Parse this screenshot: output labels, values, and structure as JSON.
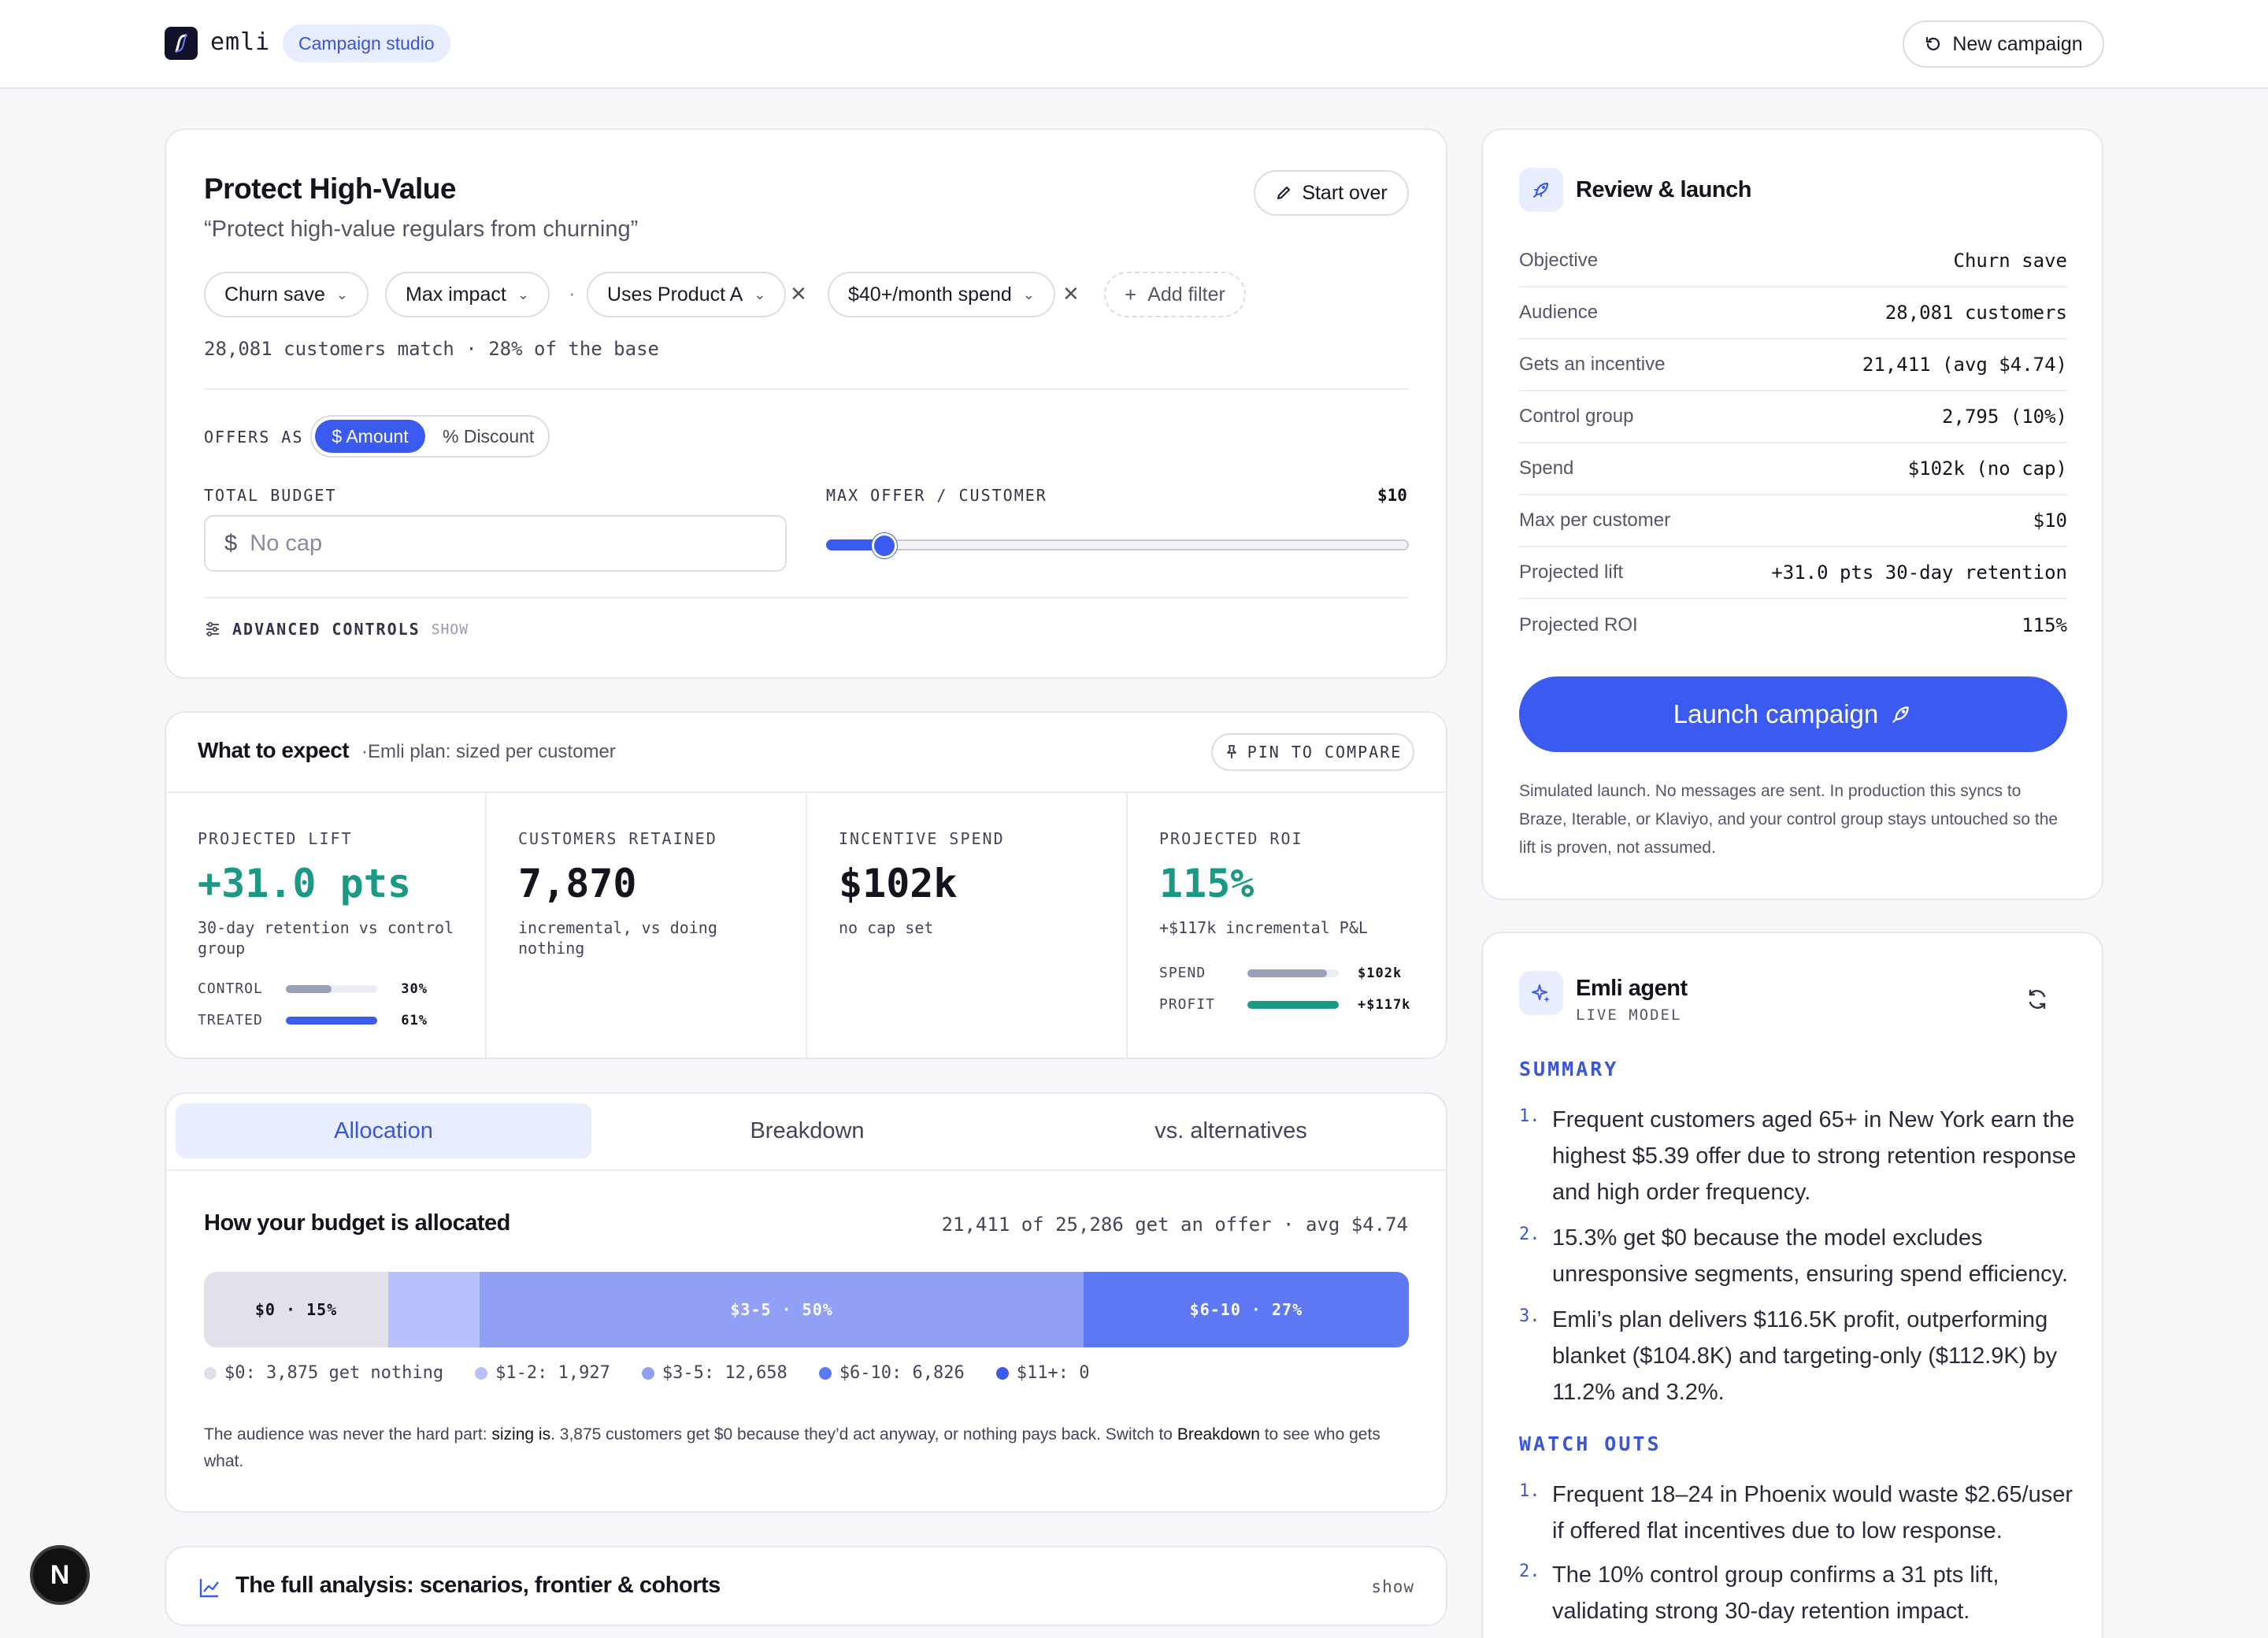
{
  "header": {
    "brand": "emli",
    "studio_label": "Campaign studio",
    "new_campaign_label": "New campaign"
  },
  "campaign": {
    "title": "Protect High-Value",
    "quote": "“Protect high-value regulars from churning”",
    "start_over_label": "Start over",
    "chips": [
      "Churn save",
      "Max impact",
      "Uses Product A",
      "$40+/month spend"
    ],
    "add_filter_label": "Add filter",
    "match_text": "28,081 customers match · 28% of the base",
    "offers_as_label": "OFFERS AS",
    "offer_mode_active": "$ Amount",
    "offer_mode_inactive": "% Discount",
    "total_budget_label": "TOTAL BUDGET",
    "budget_placeholder": "No cap",
    "max_offer_label": "MAX OFFER / CUSTOMER",
    "max_offer_value": "$10",
    "slider_fraction": 0.1,
    "advanced_label": "ADVANCED CONTROLS",
    "advanced_toggle": "SHOW"
  },
  "expect": {
    "title": "What to expect",
    "subtitle": "·Emli plan: sized per customer",
    "pin_label": "PIN TO COMPARE",
    "metrics": [
      {
        "label": "PROJECTED LIFT",
        "value": "+31.0 pts",
        "desc": "30-day retention vs control group"
      },
      {
        "label": "CUSTOMERS RETAINED",
        "value": "7,870",
        "desc": "incremental, vs doing nothing"
      },
      {
        "label": "INCENTIVE SPEND",
        "value": "$102k",
        "desc": "no cap set"
      },
      {
        "label": "PROJECTED ROI",
        "value": "115%",
        "desc": "+$117k incremental P&L"
      }
    ],
    "lift_bars": [
      {
        "label": "CONTROL",
        "value": "30%",
        "fraction": 0.5,
        "color": "#9aa0b8"
      },
      {
        "label": "TREATED",
        "value": "61%",
        "fraction": 1.0,
        "color": "#3b5bf0"
      }
    ],
    "roi_bars": [
      {
        "label": "SPEND",
        "value": "$102k",
        "fraction": 0.87,
        "color": "#9aa0b8"
      },
      {
        "label": "PROFIT",
        "value": "+$117k",
        "fraction": 1.0,
        "color": "#1a9a84"
      }
    ]
  },
  "allocation": {
    "tabs": [
      "Allocation",
      "Breakdown",
      "vs. alternatives"
    ],
    "title": "How your budget is allocated",
    "summary": "21,411 of 25,286 get an offer · avg $4.74",
    "segments": [
      {
        "label": "$0 · 15%",
        "fraction": 0.153,
        "color": "#e2e1ea",
        "text_color": "#14141f"
      },
      {
        "label": "",
        "fraction": 0.076,
        "color": "#b7c0f8",
        "text_color": "#ffffff"
      },
      {
        "label": "$3-5 · 50%",
        "fraction": 0.501,
        "color": "#8fa0f5",
        "text_color": "#ffffff"
      },
      {
        "label": "$6-10 · 27%",
        "fraction": 0.27,
        "color": "#5d78f2",
        "text_color": "#ffffff"
      }
    ],
    "legend": [
      {
        "label": "$0: 3,875 get nothing",
        "color": "#e2e1ea"
      },
      {
        "label": "$1-2: 1,927",
        "color": "#b7c0f8"
      },
      {
        "label": "$3-5: 12,658",
        "color": "#8fa0f5"
      },
      {
        "label": "$6-10: 6,826",
        "color": "#5d78f2"
      },
      {
        "label": "$11+: 0",
        "color": "#3b5bf0"
      }
    ],
    "note_a": "The audience was never the hard part: ",
    "note_b": "sizing is",
    "note_c": ". 3,875 customers get $0 because they’d act anyway, or nothing pays back. Switch to ",
    "note_d": "Breakdown",
    "note_e": " to see who gets what."
  },
  "analysis": {
    "title": "The full analysis: scenarios, frontier & cohorts",
    "toggle": "show"
  },
  "review": {
    "title": "Review & launch",
    "rows": [
      {
        "key": "Objective",
        "value": "Churn save"
      },
      {
        "key": "Audience",
        "value": "28,081 customers"
      },
      {
        "key": "Gets an incentive",
        "value": "21,411 (avg $4.74)"
      },
      {
        "key": "Control group",
        "value": "2,795 (10%)"
      },
      {
        "key": "Spend",
        "value": "$102k (no cap)"
      },
      {
        "key": "Max per customer",
        "value": "$10"
      },
      {
        "key": "Projected lift",
        "value": "+31.0 pts 30-day retention"
      },
      {
        "key": "Projected ROI",
        "value": "115%"
      }
    ],
    "launch_label": "Launch campaign",
    "note": "Simulated launch. No messages are sent. In production this syncs to Braze, Iterable, or Klaviyo, and your control group stays untouched so the lift is proven, not assumed."
  },
  "agent": {
    "title": "Emli agent",
    "subtitle": "LIVE MODEL",
    "summary_heading": "SUMMARY",
    "summary": [
      "Frequent customers aged 65+ in New York earn the highest $5.39 offer due to strong retention response and high order frequency.",
      "15.3% get $0 because the model excludes unresponsive segments, ensuring spend efficiency.",
      "Emli’s plan delivers $116.5K profit, outperforming blanket ($104.8K) and targeting-only ($112.9K) by 11.2% and 3.2%."
    ],
    "watch_heading": "WATCH OUTS",
    "watch": [
      "Frequent 18–24 in Phoenix would waste $2.65/user if offered flat incentives due to low response.",
      "The 10% control group confirms a 31 pts lift, validating strong 30-day retention impact."
    ]
  },
  "badge": "N"
}
